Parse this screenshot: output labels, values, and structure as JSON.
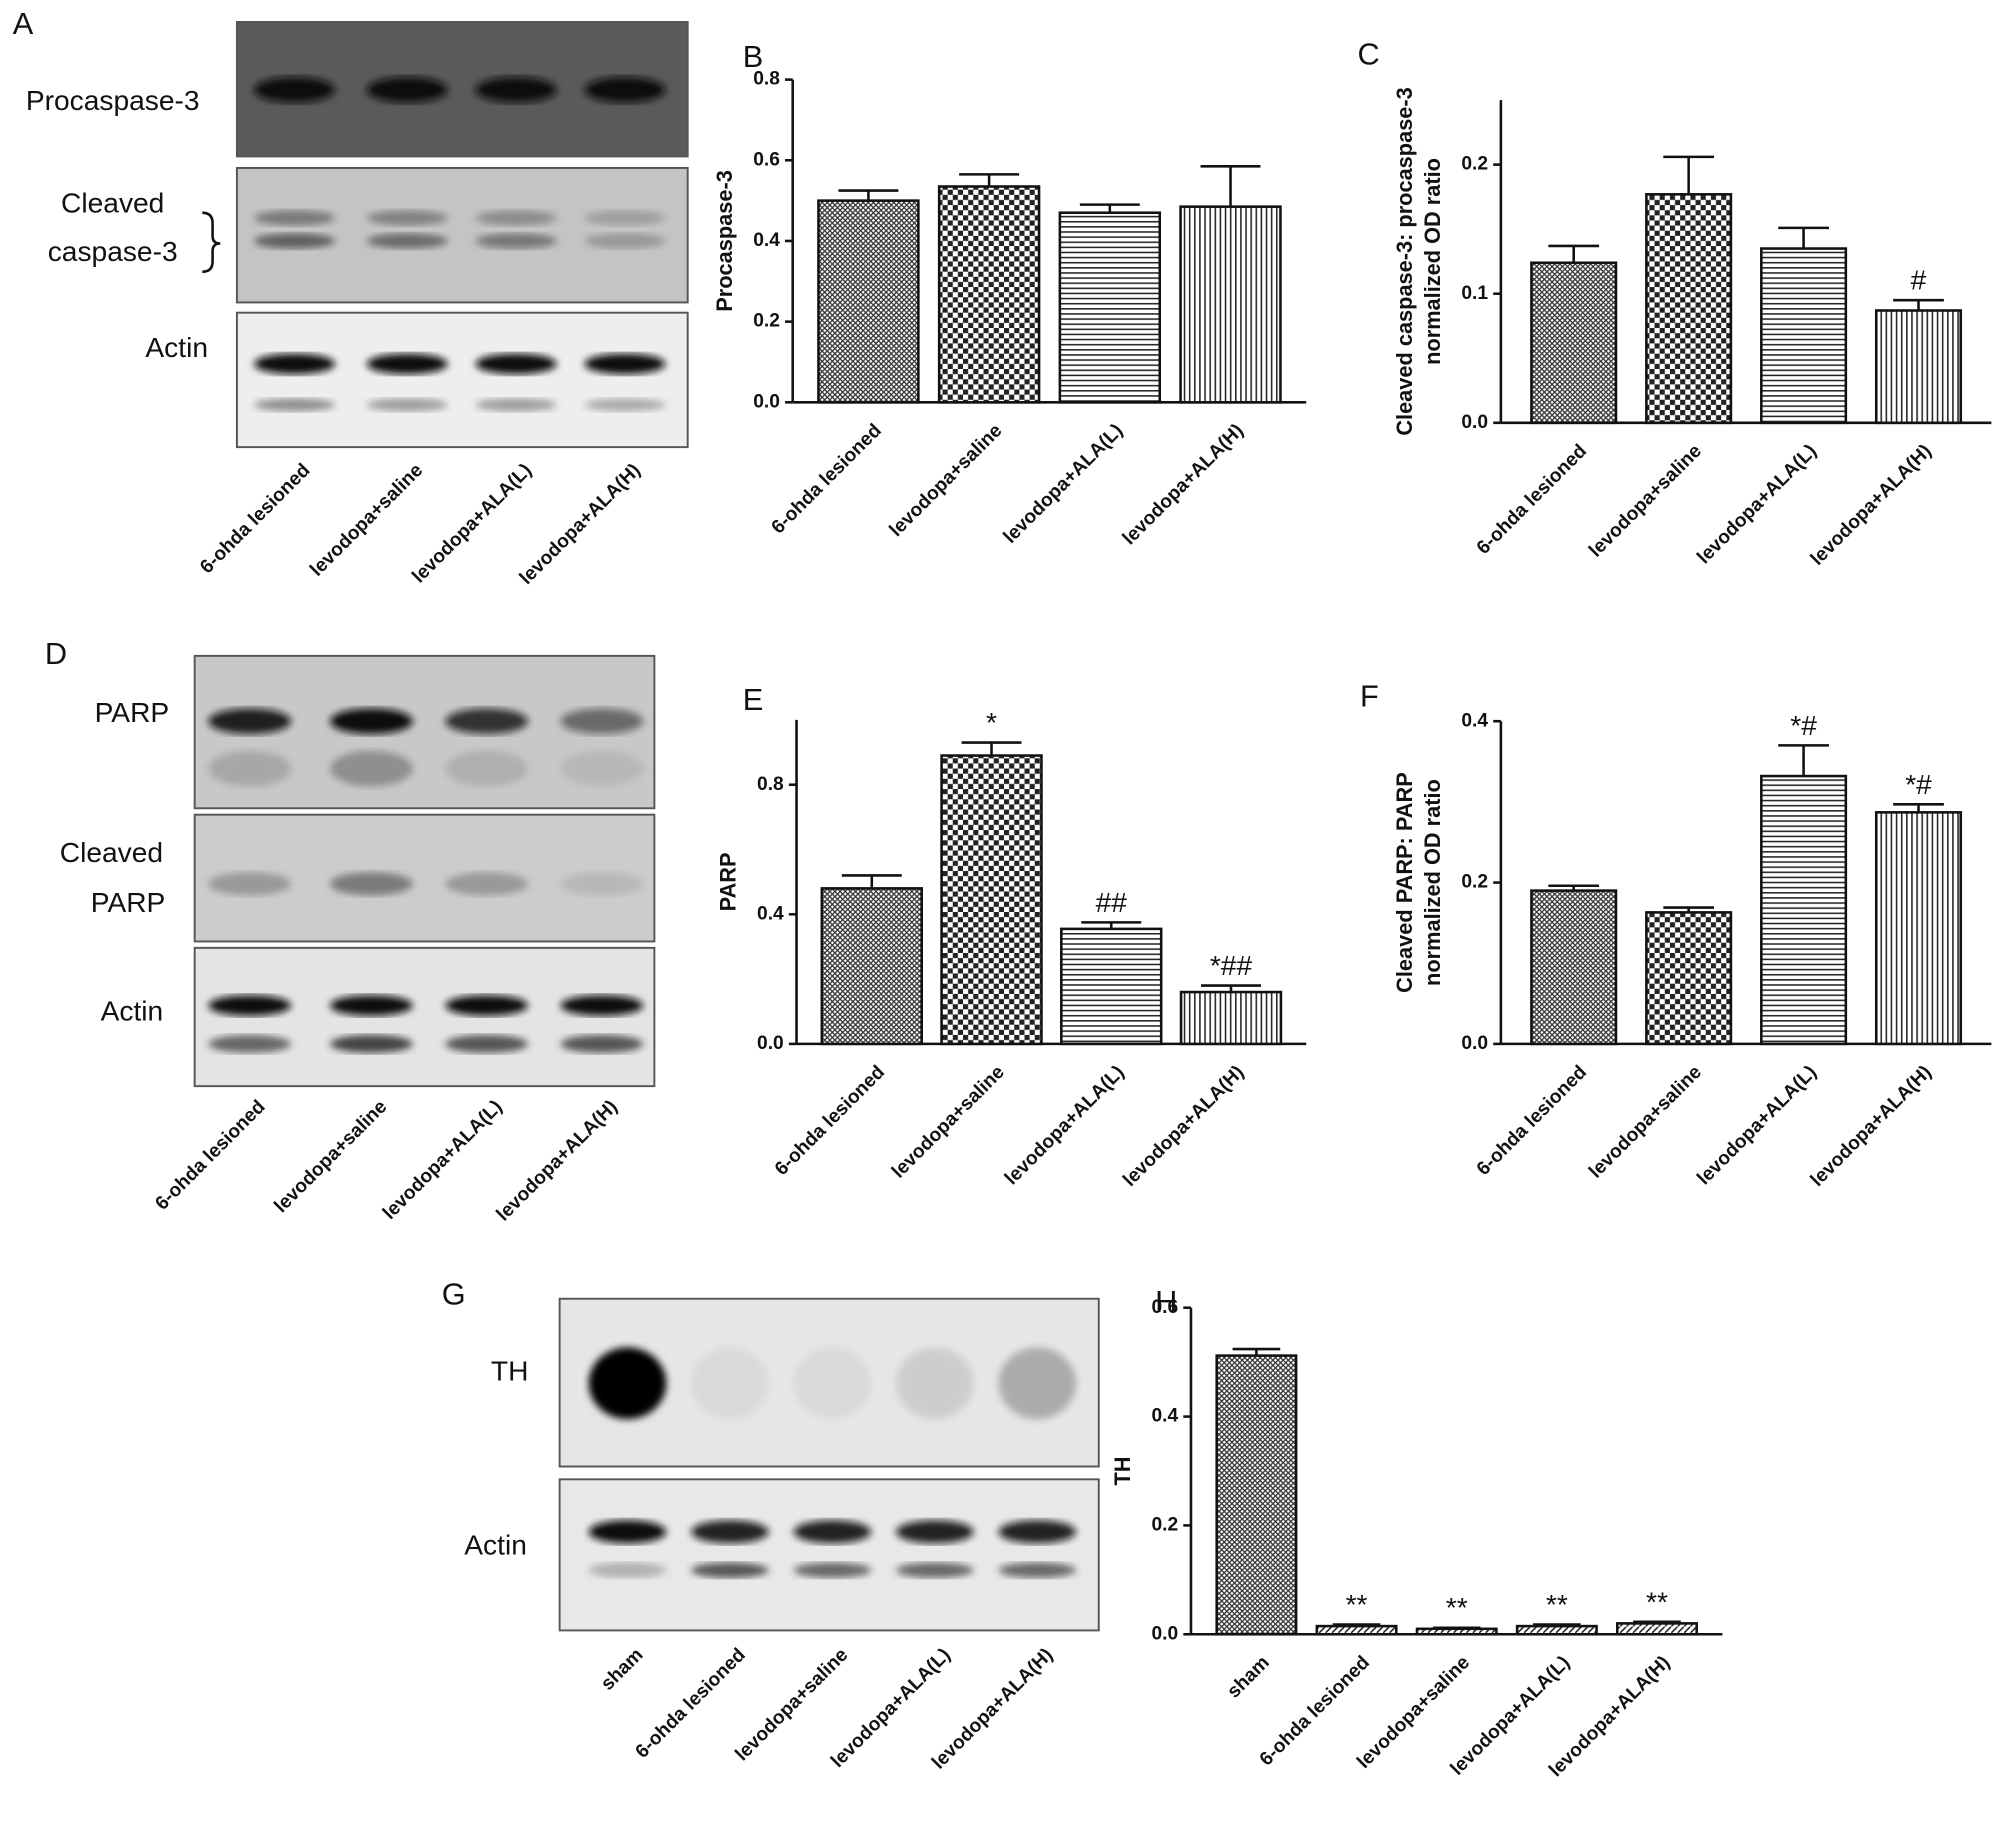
{
  "chart_data": [
    {
      "type": "bar",
      "panel": "B",
      "ylabel": [
        "Procaspase-3"
      ],
      "categories": [
        "6-ohda lesioned",
        "levodopa+saline",
        "levodopa+ALA(L)",
        "levodopa+ALA(H)"
      ],
      "values": [
        0.5,
        0.535,
        0.47,
        0.485
      ],
      "errors": [
        0.025,
        0.03,
        0.02,
        0.1
      ],
      "annotations": [
        null,
        null,
        null,
        null
      ],
      "patterns": [
        "crosshatch",
        "checker",
        "horizontal",
        "vertical"
      ],
      "ylim": [
        0,
        0.8
      ],
      "yticks": [
        {
          "value": 0,
          "label": "0.0"
        },
        0.2,
        0.4,
        0.6,
        0.8
      ]
    },
    {
      "type": "bar",
      "panel": "C",
      "ylabel": [
        "Cleaved caspase-3: procaspase-3",
        "normalized OD ratio"
      ],
      "categories": [
        "6-ohda lesioned",
        "levodopa+saline",
        "levodopa+ALA(L)",
        "levodopa+ALA(H)"
      ],
      "values": [
        0.124,
        0.177,
        0.135,
        0.087
      ],
      "errors": [
        0.013,
        0.029,
        0.016,
        0.008
      ],
      "annotations": [
        null,
        null,
        null,
        "#"
      ],
      "patterns": [
        "crosshatch",
        "checker",
        "horizontal",
        "vertical"
      ],
      "ylim": [
        0,
        0.25
      ],
      "yticks": [
        {
          "value": 0,
          "label": "0.0"
        },
        0.1,
        0.2
      ]
    },
    {
      "type": "bar",
      "panel": "E",
      "ylabel": [
        "PARP"
      ],
      "categories": [
        "6-ohda lesioned",
        "levodopa+saline",
        "levodopa+ALA(L)",
        "levodopa+ALA(H)"
      ],
      "values": [
        0.48,
        0.89,
        0.355,
        0.16
      ],
      "errors": [
        0.04,
        0.04,
        0.02,
        0.02
      ],
      "annotations": [
        null,
        "*",
        "##",
        "*##"
      ],
      "patterns": [
        "crosshatch",
        "checker",
        "horizontal",
        "vertical"
      ],
      "ylim": [
        0,
        1.0
      ],
      "yticks": [
        {
          "value": 0,
          "label": "0.0"
        },
        0.4,
        0.8
      ]
    },
    {
      "type": "bar",
      "panel": "F",
      "ylabel": [
        "Cleaved PARP: PARP",
        "normalized OD ratio"
      ],
      "categories": [
        "6-ohda lesioned",
        "levodopa+saline",
        "levodopa+ALA(L)",
        "levodopa+ALA(H)"
      ],
      "values": [
        0.19,
        0.163,
        0.332,
        0.287
      ],
      "errors": [
        0.006,
        0.006,
        0.038,
        0.01
      ],
      "annotations": [
        null,
        null,
        "*#",
        "*#"
      ],
      "patterns": [
        "crosshatch",
        "checker",
        "horizontal",
        "vertical"
      ],
      "ylim": [
        0,
        0.4
      ],
      "yticks": [
        {
          "value": 0,
          "label": "0.0"
        },
        0.2,
        0.4
      ]
    },
    {
      "type": "bar",
      "panel": "H",
      "ylabel": [
        "TH"
      ],
      "categories": [
        "sham",
        "6-ohda lesioned",
        "levodopa+saline",
        "levodopa+ALA(L)",
        "levodopa+ALA(H)"
      ],
      "values": [
        0.512,
        0.015,
        0.01,
        0.015,
        0.02
      ],
      "errors": [
        0.012,
        0.003,
        0.002,
        0.003,
        0.003
      ],
      "annotations": [
        null,
        "**",
        "**",
        "**",
        "**"
      ],
      "patterns": [
        "crosshatch",
        "diagonal",
        "diagonal",
        "diagonal",
        "diagonal"
      ],
      "ylim": [
        0,
        0.6
      ],
      "yticks": [
        {
          "value": 0,
          "label": "0.0"
        },
        0.2,
        0.4,
        0.6
      ]
    }
  ],
  "blots": [
    {
      "panel": "A",
      "bands": [
        [
          "Procaspase-3"
        ],
        [
          "Cleaved",
          "caspase-3"
        ],
        [
          "Actin"
        ]
      ],
      "lanes": [
        "6-ohda lesioned",
        "levodopa+saline",
        "levodopa+ALA(L)",
        "levodopa+ALA(H)"
      ]
    },
    {
      "panel": "D",
      "bands": [
        [
          "PARP"
        ],
        [
          "Cleaved",
          "PARP"
        ],
        [
          "Actin"
        ]
      ],
      "lanes": [
        "6-ohda lesioned",
        "levodopa+saline",
        "levodopa+ALA(L)",
        "levodopa+ALA(H)"
      ]
    },
    {
      "panel": "G",
      "bands": [
        [
          "TH"
        ],
        [
          "Actin"
        ]
      ],
      "lanes": [
        "sham",
        "6-ohda lesioned",
        "levodopa+saline",
        "levodopa+ALA(L)",
        "levodopa+ALA(H)"
      ]
    }
  ]
}
